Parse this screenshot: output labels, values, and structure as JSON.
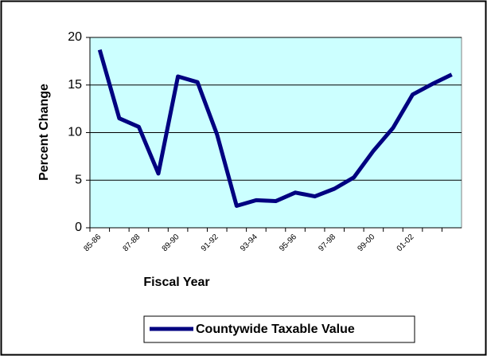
{
  "chart_data": {
    "type": "line",
    "x_label": "Fiscal Year",
    "y_label": "Percent Change",
    "categories": [
      "85-86",
      null,
      "87-88",
      null,
      "89-90",
      null,
      "91-92",
      null,
      "93-94",
      null,
      "95-96",
      null,
      "97-98",
      null,
      "99-00",
      null,
      "01-02",
      null,
      null
    ],
    "series": [
      {
        "name": "Countywide Taxable Value",
        "color": "#000080",
        "values": [
          18.7,
          11.5,
          10.6,
          5.7,
          15.9,
          15.3,
          9.8,
          2.3,
          2.9,
          2.8,
          3.7,
          3.3,
          4.1,
          5.3,
          8.1,
          10.5,
          14.0,
          15.1,
          16.1
        ]
      }
    ],
    "ylim": [
      0,
      20
    ],
    "yticks": [
      0,
      5,
      10,
      15,
      20
    ],
    "grid": true,
    "legend": "bottom",
    "background": "#ccffff"
  }
}
